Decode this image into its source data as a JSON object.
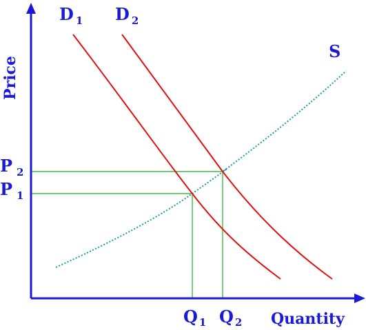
{
  "axes": {
    "y_title": "Price",
    "x_title": "Quantity"
  },
  "curves": {
    "demand_1": {
      "letter": "D",
      "subscript": "1"
    },
    "demand_2": {
      "letter": "D",
      "subscript": "2"
    },
    "supply": {
      "letter": "S"
    }
  },
  "price_levels": {
    "p1": {
      "letter": "P",
      "subscript": "1"
    },
    "p2": {
      "letter": "P",
      "subscript": "2"
    }
  },
  "quantity_levels": {
    "q1": {
      "letter": "Q",
      "subscript": "1"
    },
    "q2": {
      "letter": "Q",
      "subscript": "2"
    }
  },
  "colors": {
    "axis": "#1a1ad4",
    "demand": "#e01010",
    "supply": "#1a9a9a",
    "guide": "#22aa22",
    "label": "#1a1ad4"
  }
}
